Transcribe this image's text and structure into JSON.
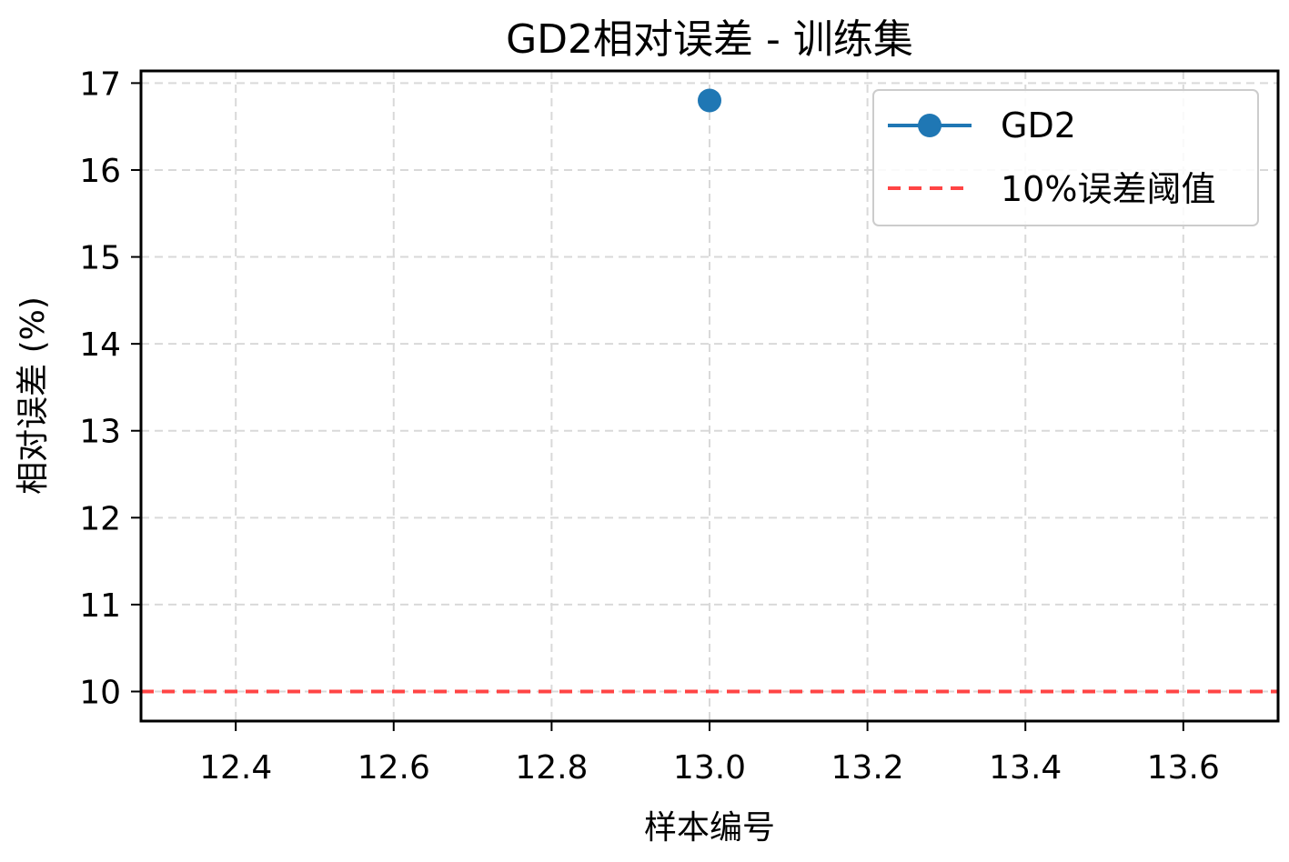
{
  "chart_data": {
    "type": "line",
    "title": "GD2相对误差 - 训练集",
    "xlabel": "样本编号",
    "ylabel": "相对误差 (%)",
    "xlim": [
      12.28,
      13.72
    ],
    "ylim": [
      9.66,
      17.14
    ],
    "x_ticks": [
      "12.4",
      "12.6",
      "12.8",
      "13.0",
      "13.2",
      "13.4",
      "13.6"
    ],
    "x_tick_values": [
      12.4,
      12.6,
      12.8,
      13.0,
      13.2,
      13.4,
      13.6
    ],
    "y_ticks": [
      "10",
      "11",
      "12",
      "13",
      "14",
      "15",
      "16",
      "17"
    ],
    "y_tick_values": [
      10,
      11,
      12,
      13,
      14,
      15,
      16,
      17
    ],
    "grid": true,
    "legend_position": "top-right",
    "series": [
      {
        "name": "GD2",
        "color": "#1f77b4",
        "marker": "circle",
        "x": [
          13.0
        ],
        "y": [
          16.8
        ]
      }
    ],
    "reference_lines": [
      {
        "name": "10%误差阈值",
        "orientation": "horizontal",
        "value": 10,
        "color": "#ff4444",
        "style": "dashed"
      }
    ],
    "legend": {
      "entries": [
        "GD2",
        "10%误差阈值"
      ]
    }
  }
}
